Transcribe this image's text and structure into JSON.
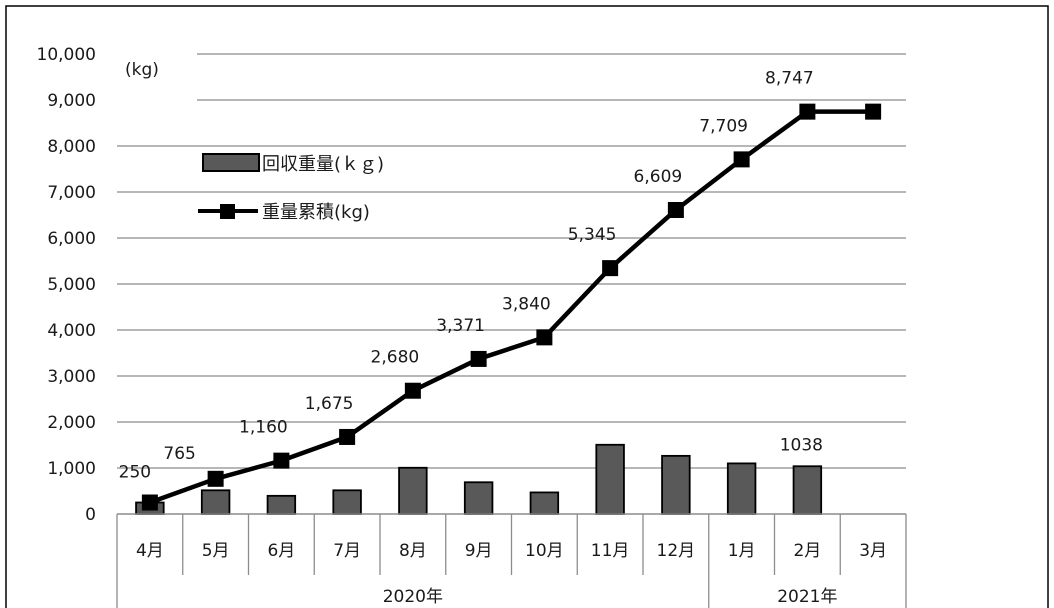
{
  "chart_data": {
    "type": "bar+line",
    "unit_label": "(kg)",
    "categories": [
      "4月",
      "5月",
      "6月",
      "7月",
      "8月",
      "9月",
      "10月",
      "11月",
      "12月",
      "1月",
      "2月",
      "3月"
    ],
    "year_groups": [
      {
        "label": "2020年",
        "from": 0,
        "to": 8
      },
      {
        "label": "2021年",
        "from": 9,
        "to": 11
      }
    ],
    "yticks": [
      "0",
      "1,000",
      "2,000",
      "3,000",
      "4,000",
      "5,000",
      "6,000",
      "7,000",
      "8,000",
      "9,000",
      "10,000"
    ],
    "ylim": [
      0,
      10000
    ],
    "grid": true,
    "series": [
      {
        "name": "回収重量(ｋｇ)",
        "kind": "bar",
        "color": "#595959",
        "values": [
          250,
          515,
          395,
          515,
          1005,
          690,
          469,
          1505,
          1264,
          1100,
          1038,
          null
        ],
        "labels": [
          null,
          null,
          null,
          null,
          null,
          null,
          null,
          null,
          null,
          null,
          "1038",
          null
        ]
      },
      {
        "name": "重量累積(kg)",
        "kind": "line",
        "color": "#000000",
        "values": [
          250,
          765,
          1160,
          1675,
          2680,
          3371,
          3840,
          5345,
          6609,
          7709,
          8747,
          8747
        ],
        "labels": [
          "250",
          "765",
          "1,160",
          "1,675",
          "2,680",
          "3,371",
          "3,840",
          "5,345",
          "6,609",
          "7,709",
          "8,747",
          null
        ]
      }
    ],
    "legend": "top-left"
  }
}
